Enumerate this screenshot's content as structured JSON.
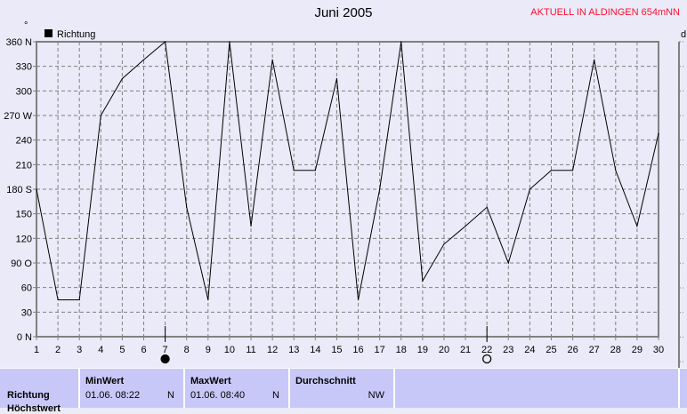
{
  "title": "Juni 2005",
  "current_label": "AKTUELL IN ALDINGEN 654mNN",
  "right_axis_label": "d",
  "unit_mark": "°",
  "chart_data": {
    "type": "line",
    "title": "Juni 2005",
    "legend": [
      {
        "name": "Richtung",
        "color": "#000000"
      }
    ],
    "legend_placement": "top-left",
    "x": [
      1,
      2,
      3,
      4,
      5,
      6,
      7,
      8,
      9,
      10,
      11,
      12,
      13,
      14,
      15,
      16,
      17,
      18,
      19,
      20,
      21,
      22,
      23,
      24,
      25,
      26,
      27,
      28,
      29,
      30
    ],
    "series": [
      {
        "name": "Richtung",
        "values": [
          180,
          45,
          45,
          270,
          315,
          338,
          360,
          158,
          45,
          360,
          135,
          338,
          203,
          203,
          315,
          45,
          180,
          360,
          68,
          113,
          135,
          158,
          90,
          180,
          203,
          203,
          338,
          203,
          135,
          248
        ]
      }
    ],
    "xlim": [
      1,
      30
    ],
    "ylim": [
      0,
      360
    ],
    "yticks": [
      0,
      30,
      60,
      90,
      120,
      150,
      180,
      210,
      240,
      270,
      300,
      330,
      360
    ],
    "ytick_labels": [
      "0  N",
      "30",
      "60",
      "90 O",
      "120",
      "150",
      "180 S",
      "210",
      "240",
      "270 W",
      "300",
      "330",
      "360 N"
    ],
    "grid": true,
    "moon_phases": [
      {
        "day": 7,
        "phase": "new-moon"
      },
      {
        "day": 22,
        "phase": "full-moon"
      }
    ]
  },
  "table": {
    "row_label": "Richtung",
    "row_label2": "Höchstwert",
    "columns": [
      {
        "header": "MinWert",
        "date": "01.06.  08:22",
        "dir": "N"
      },
      {
        "header": "MaxWert",
        "date": "01.06.  08:40",
        "dir": "N"
      },
      {
        "header": "Durchschnitt",
        "date": "",
        "dir": "NW"
      }
    ]
  }
}
